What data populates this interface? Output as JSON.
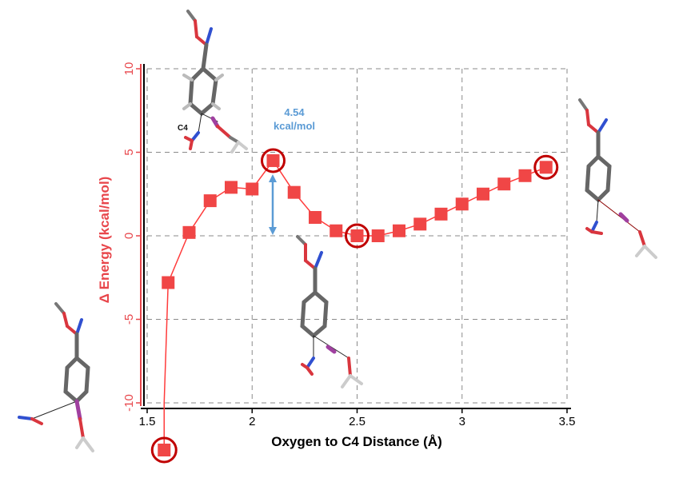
{
  "chart_data": {
    "type": "line",
    "xlabel": "Oxygen to C4 Distance (Å)",
    "ylabel": "Δ Energy (kcal/mol)",
    "xlim": [
      1.5,
      3.5
    ],
    "ylim": [
      -10,
      10
    ],
    "xticks": [
      "1.5",
      "2",
      "2.5",
      "3",
      "3.5"
    ],
    "yticks": [
      "-10",
      "-5",
      "0",
      "5",
      "10"
    ],
    "grid": true,
    "series": [
      {
        "color": "#ff3b3b",
        "x": [
          1.6,
          1.7,
          1.8,
          1.9,
          2.0,
          2.1,
          2.2,
          2.3,
          2.4,
          2.5,
          2.6,
          2.7,
          2.8,
          2.9,
          3.0,
          3.1,
          3.2,
          3.3,
          3.4
        ],
        "y": [
          -2.8,
          0.2,
          2.1,
          2.9,
          2.8,
          4.5,
          2.6,
          1.1,
          0.3,
          0.0,
          0.0,
          0.3,
          0.7,
          1.3,
          1.9,
          2.5,
          3.1,
          3.6,
          4.1
        ]
      }
    ],
    "highlighted_points": [
      {
        "x": 2.1,
        "y": 4.5
      },
      {
        "x": 2.5,
        "y": 0.0
      },
      {
        "x": 3.4,
        "y": 4.1
      }
    ],
    "offscale_point_note": "one more point at x = 1.6 drawn below the y axis floor (-10)",
    "annotations": [
      {
        "text": "4.54",
        "line2": "kcal/mol",
        "color": "#5b9bd5"
      },
      {
        "text": "C4"
      }
    ],
    "accent_color": "#c00000",
    "arrow_color": "#5b9bd5"
  }
}
